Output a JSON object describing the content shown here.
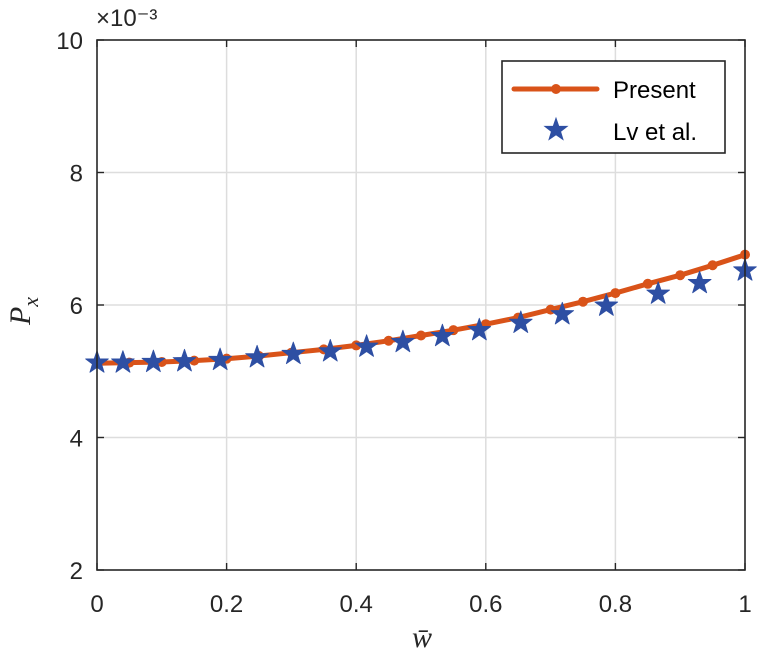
{
  "chart_data": {
    "type": "line",
    "title": "",
    "xlabel": "w̄",
    "ylabel": "P",
    "ylabel_subscript": "x",
    "xlim": [
      0,
      1
    ],
    "ylim": [
      2,
      10
    ],
    "y_scale_label": "×10⁻³",
    "x_tick_labels": [
      "0",
      "0.2",
      "0.4",
      "0.6",
      "0.8",
      "1"
    ],
    "y_tick_labels": [
      "2",
      "4",
      "6",
      "8",
      "10"
    ],
    "grid": true,
    "legend_position": "top-right",
    "colors": {
      "present": "#D95319",
      "lv": "#2E4FA3",
      "grid": "#DDDDDD",
      "axis": "#262626"
    },
    "series": [
      {
        "name": "Present",
        "style": "line-dot",
        "x": [
          0,
          0.05,
          0.1,
          0.15,
          0.2,
          0.25,
          0.3,
          0.35,
          0.4,
          0.45,
          0.5,
          0.55,
          0.6,
          0.65,
          0.7,
          0.75,
          0.8,
          0.85,
          0.9,
          0.95,
          1.0
        ],
        "y": [
          5.12,
          5.13,
          5.14,
          5.16,
          5.19,
          5.23,
          5.28,
          5.33,
          5.39,
          5.46,
          5.54,
          5.62,
          5.71,
          5.81,
          5.93,
          6.05,
          6.18,
          6.32,
          6.45,
          6.6,
          6.76
        ]
      },
      {
        "name": "Lv et al.",
        "style": "star",
        "x": [
          0,
          0.04,
          0.087,
          0.135,
          0.19,
          0.247,
          0.303,
          0.36,
          0.416,
          0.472,
          0.533,
          0.59,
          0.654,
          0.718,
          0.786,
          0.866,
          0.93,
          1.0
        ],
        "y": [
          5.13,
          5.13,
          5.14,
          5.15,
          5.17,
          5.21,
          5.26,
          5.3,
          5.37,
          5.44,
          5.53,
          5.62,
          5.73,
          5.86,
          5.99,
          6.17,
          6.33,
          6.52
        ]
      }
    ]
  }
}
